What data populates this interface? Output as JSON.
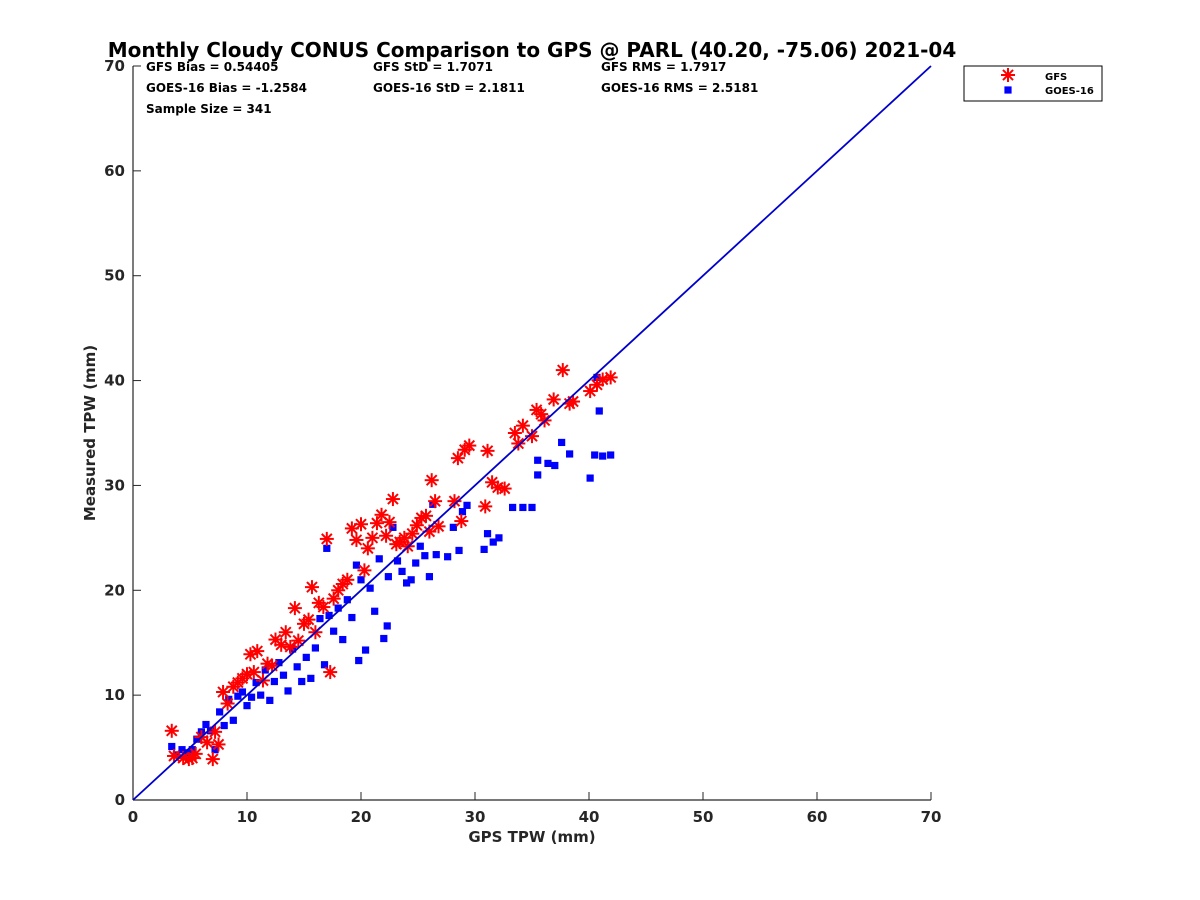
{
  "chart_data": {
    "type": "scatter",
    "title": "Monthly Cloudy CONUS Comparison to GPS @ PARL (40.20, -75.06) 2021-04",
    "xlabel": "GPS TPW (mm)",
    "ylabel": "Measured TPW (mm)",
    "xlim": [
      0,
      70
    ],
    "ylim": [
      0,
      70
    ],
    "xticks": [
      "0",
      "10",
      "20",
      "30",
      "40",
      "50",
      "60",
      "70"
    ],
    "yticks": [
      "0",
      "10",
      "20",
      "30",
      "40",
      "50",
      "60",
      "70"
    ],
    "grid": false,
    "legend_position": "top-right",
    "stats": [
      [
        "GFS Bias = 0.54405",
        "GFS StD = 1.7071",
        "GFS RMS = 1.7917"
      ],
      [
        "GOES-16 Bias = -1.2584",
        "GOES-16 StD = 2.1811",
        "GOES-16 RMS = 2.5181"
      ],
      [
        "Sample Size = 341"
      ]
    ],
    "reference_line": {
      "x": [
        0,
        70
      ],
      "y": [
        0,
        70
      ],
      "color": "#0000cc"
    },
    "series": [
      {
        "name": "GFS",
        "marker": "asterisk",
        "color": "#ff0000",
        "points": [
          [
            3.4,
            6.6
          ],
          [
            3.6,
            4.2
          ],
          [
            4.4,
            4.0
          ],
          [
            4.9,
            3.9
          ],
          [
            5.2,
            4.0
          ],
          [
            5.5,
            4.4
          ],
          [
            6.0,
            6.0
          ],
          [
            6.5,
            5.5
          ],
          [
            7.0,
            3.9
          ],
          [
            7.2,
            6.5
          ],
          [
            7.5,
            5.3
          ],
          [
            7.9,
            10.3
          ],
          [
            8.3,
            9.2
          ],
          [
            8.8,
            10.8
          ],
          [
            9.2,
            11.2
          ],
          [
            9.6,
            11.6
          ],
          [
            10.0,
            12.0
          ],
          [
            10.3,
            13.9
          ],
          [
            10.6,
            12.2
          ],
          [
            10.9,
            14.2
          ],
          [
            11.4,
            11.4
          ],
          [
            11.8,
            13.0
          ],
          [
            12.2,
            12.8
          ],
          [
            12.5,
            15.3
          ],
          [
            13.0,
            14.8
          ],
          [
            13.4,
            16.0
          ],
          [
            13.8,
            14.6
          ],
          [
            14.2,
            18.3
          ],
          [
            14.5,
            15.2
          ],
          [
            15.0,
            16.8
          ],
          [
            15.4,
            17.2
          ],
          [
            15.7,
            20.3
          ],
          [
            16.0,
            16.0
          ],
          [
            16.3,
            18.8
          ],
          [
            16.7,
            18.4
          ],
          [
            17.0,
            24.9
          ],
          [
            17.3,
            12.2
          ],
          [
            17.6,
            19.2
          ],
          [
            18.0,
            20.0
          ],
          [
            18.4,
            20.6
          ],
          [
            18.8,
            21.0
          ],
          [
            19.2,
            25.9
          ],
          [
            19.6,
            24.8
          ],
          [
            20.0,
            26.3
          ],
          [
            20.3,
            21.9
          ],
          [
            20.6,
            24.0
          ],
          [
            21.0,
            25.0
          ],
          [
            21.4,
            26.4
          ],
          [
            21.8,
            27.2
          ],
          [
            22.2,
            25.2
          ],
          [
            22.5,
            26.5
          ],
          [
            22.8,
            28.7
          ],
          [
            23.1,
            24.4
          ],
          [
            23.4,
            24.6
          ],
          [
            23.8,
            25.0
          ],
          [
            24.1,
            24.2
          ],
          [
            24.5,
            25.4
          ],
          [
            24.9,
            26.2
          ],
          [
            25.3,
            26.9
          ],
          [
            25.7,
            27.1
          ],
          [
            26.0,
            25.6
          ],
          [
            26.2,
            30.5
          ],
          [
            26.5,
            28.5
          ],
          [
            26.8,
            26.1
          ],
          [
            28.2,
            28.5
          ],
          [
            28.5,
            32.6
          ],
          [
            28.8,
            26.6
          ],
          [
            29.1,
            33.4
          ],
          [
            29.5,
            33.8
          ],
          [
            30.9,
            28.0
          ],
          [
            31.1,
            33.3
          ],
          [
            31.5,
            30.3
          ],
          [
            32.0,
            29.8
          ],
          [
            32.6,
            29.7
          ],
          [
            33.5,
            35.0
          ],
          [
            33.8,
            34.0
          ],
          [
            34.2,
            35.7
          ],
          [
            35.0,
            34.7
          ],
          [
            35.4,
            37.2
          ],
          [
            35.8,
            36.8
          ],
          [
            36.1,
            36.2
          ],
          [
            36.9,
            38.2
          ],
          [
            37.7,
            41.0
          ],
          [
            38.3,
            37.8
          ],
          [
            38.6,
            38.0
          ],
          [
            40.1,
            39.0
          ],
          [
            40.7,
            39.6
          ],
          [
            41.2,
            40.1
          ],
          [
            41.9,
            40.3
          ]
        ]
      },
      {
        "name": "GOES-16",
        "marker": "square",
        "color": "#0000ff",
        "points": [
          [
            3.4,
            5.1
          ],
          [
            3.8,
            4.3
          ],
          [
            4.3,
            4.8
          ],
          [
            4.8,
            4.5
          ],
          [
            5.2,
            4.8
          ],
          [
            5.6,
            5.8
          ],
          [
            6.0,
            6.5
          ],
          [
            6.4,
            7.2
          ],
          [
            6.8,
            6.6
          ],
          [
            7.2,
            4.8
          ],
          [
            7.6,
            8.4
          ],
          [
            8.0,
            7.1
          ],
          [
            8.4,
            9.6
          ],
          [
            8.8,
            7.6
          ],
          [
            9.2,
            9.9
          ],
          [
            9.6,
            10.3
          ],
          [
            10.0,
            9.0
          ],
          [
            10.4,
            9.8
          ],
          [
            10.8,
            11.2
          ],
          [
            11.2,
            10.0
          ],
          [
            11.6,
            12.4
          ],
          [
            12.0,
            9.5
          ],
          [
            12.4,
            11.3
          ],
          [
            12.8,
            13.1
          ],
          [
            13.2,
            11.9
          ],
          [
            13.6,
            10.4
          ],
          [
            14.0,
            14.4
          ],
          [
            14.4,
            12.7
          ],
          [
            14.8,
            11.3
          ],
          [
            15.2,
            13.6
          ],
          [
            15.6,
            11.6
          ],
          [
            16.0,
            14.5
          ],
          [
            16.4,
            17.3
          ],
          [
            16.8,
            12.9
          ],
          [
            17.0,
            24.0
          ],
          [
            17.2,
            17.6
          ],
          [
            17.6,
            16.1
          ],
          [
            18.0,
            18.3
          ],
          [
            18.4,
            15.3
          ],
          [
            18.8,
            19.1
          ],
          [
            19.2,
            17.4
          ],
          [
            19.6,
            22.4
          ],
          [
            19.8,
            13.3
          ],
          [
            20.0,
            21.0
          ],
          [
            20.4,
            14.3
          ],
          [
            20.8,
            20.2
          ],
          [
            21.2,
            18.0
          ],
          [
            21.6,
            23.0
          ],
          [
            22.0,
            15.4
          ],
          [
            22.3,
            16.6
          ],
          [
            22.4,
            21.3
          ],
          [
            22.8,
            26.0
          ],
          [
            23.2,
            22.8
          ],
          [
            23.6,
            21.8
          ],
          [
            24.0,
            20.7
          ],
          [
            24.4,
            21.0
          ],
          [
            24.8,
            22.6
          ],
          [
            25.2,
            24.2
          ],
          [
            25.6,
            23.3
          ],
          [
            26.0,
            21.3
          ],
          [
            26.3,
            28.2
          ],
          [
            26.6,
            23.4
          ],
          [
            27.6,
            23.2
          ],
          [
            28.1,
            26.0
          ],
          [
            28.6,
            23.8
          ],
          [
            28.9,
            27.5
          ],
          [
            29.3,
            28.1
          ],
          [
            30.8,
            23.9
          ],
          [
            31.1,
            25.4
          ],
          [
            31.6,
            24.6
          ],
          [
            32.1,
            25.0
          ],
          [
            33.3,
            27.9
          ],
          [
            34.2,
            27.9
          ],
          [
            35.0,
            27.9
          ],
          [
            35.5,
            31.0
          ],
          [
            35.5,
            32.4
          ],
          [
            36.4,
            32.1
          ],
          [
            37.0,
            31.9
          ],
          [
            37.6,
            34.1
          ],
          [
            38.3,
            33.0
          ],
          [
            40.1,
            30.7
          ],
          [
            40.5,
            32.9
          ],
          [
            40.7,
            40.3
          ],
          [
            40.9,
            37.1
          ],
          [
            41.2,
            32.8
          ],
          [
            41.9,
            32.9
          ]
        ]
      }
    ]
  }
}
